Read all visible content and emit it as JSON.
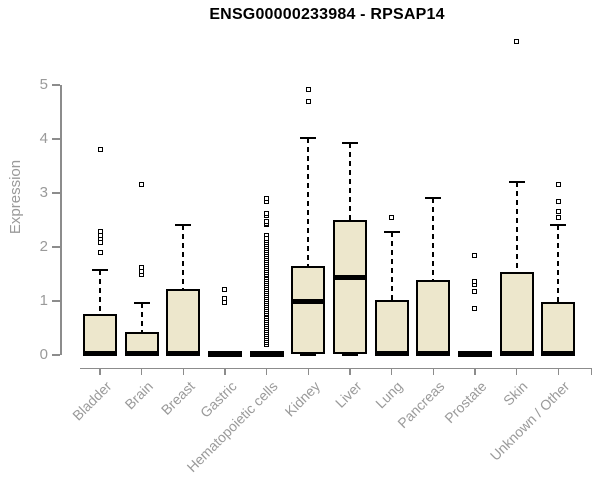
{
  "chart_data": {
    "type": "boxplot",
    "title": "ENSG00000233984 - RPSAP14",
    "ylabel": "Expression",
    "xlabel": "",
    "ylim": [
      0,
      5
    ],
    "yticks": [
      0,
      1,
      2,
      3,
      4,
      5
    ],
    "grid": false,
    "legend": "none",
    "colors": {
      "box_fill": "#EDE7CC",
      "box_border": "#000000",
      "median": "#000000",
      "axis": "#8c8c8c",
      "tick_label": "#9a9a9a",
      "title": "#000000",
      "outlier_fill": "#ffffff"
    },
    "categories": [
      "Bladder",
      "Brain",
      "Breast",
      "Gastric",
      "Hematopoietic cells",
      "Kidney",
      "Liver",
      "Lung",
      "Pancreas",
      "Prostate",
      "Skin",
      "Unknown / Other"
    ],
    "series": [
      {
        "name": "Bladder",
        "q1": 0,
        "median": 0.03,
        "q3": 0.76,
        "whisker_low": 0,
        "whisker_high": 1.57,
        "outliers": [
          1.9,
          2.08,
          2.15,
          2.22,
          2.28,
          3.8
        ],
        "outlier_band": null
      },
      {
        "name": "Brain",
        "q1": 0,
        "median": 0.03,
        "q3": 0.43,
        "whisker_low": 0,
        "whisker_high": 0.96,
        "outliers": [
          1.5,
          1.55,
          1.62,
          3.15
        ],
        "outlier_band": null
      },
      {
        "name": "Breast",
        "q1": 0,
        "median": 0.03,
        "q3": 1.23,
        "whisker_low": 0,
        "whisker_high": 2.41,
        "outliers": [],
        "outlier_band": null
      },
      {
        "name": "Gastric",
        "q1": 0,
        "median": 0.02,
        "q3": 0.04,
        "whisker_low": 0,
        "whisker_high": 0.04,
        "outliers": [
          0.97,
          1.05,
          1.22
        ],
        "outlier_band": null
      },
      {
        "name": "Hematopoietic cells",
        "q1": 0,
        "median": 0.02,
        "q3": 0.04,
        "whisker_low": 0,
        "whisker_high": 0.04,
        "outliers": [
          2.22,
          2.41,
          2.44,
          2.47,
          2.58,
          2.62,
          2.85,
          2.9
        ],
        "outlier_band": {
          "min": 0.2,
          "max": 2.15,
          "count": 55
        }
      },
      {
        "name": "Kidney",
        "q1": 0.02,
        "median": 1.0,
        "q3": 1.65,
        "whisker_low": 0,
        "whisker_high": 4.02,
        "outliers": [
          4.69,
          4.91
        ],
        "outlier_band": null
      },
      {
        "name": "Liver",
        "q1": 0.02,
        "median": 1.43,
        "q3": 2.5,
        "whisker_low": 0,
        "whisker_high": 3.93,
        "outliers": [],
        "outlier_band": null
      },
      {
        "name": "Lung",
        "q1": 0,
        "median": 0.03,
        "q3": 1.02,
        "whisker_low": 0,
        "whisker_high": 2.28,
        "outliers": [
          2.55
        ],
        "outlier_band": null
      },
      {
        "name": "Pancreas",
        "q1": 0,
        "median": 0.03,
        "q3": 1.39,
        "whisker_low": 0,
        "whisker_high": 2.9,
        "outliers": [],
        "outlier_band": null
      },
      {
        "name": "Prostate",
        "q1": 0,
        "median": 0.02,
        "q3": 0.04,
        "whisker_low": 0,
        "whisker_high": 0.04,
        "outliers": [
          0.86,
          1.17,
          1.3,
          1.36,
          1.85
        ],
        "outlier_band": null
      },
      {
        "name": "Skin",
        "q1": 0,
        "median": 0.03,
        "q3": 1.54,
        "whisker_low": 0,
        "whisker_high": 3.2,
        "outliers": [
          5.8
        ],
        "outlier_band": null
      },
      {
        "name": "Unknown / Other",
        "q1": 0,
        "median": 0.03,
        "q3": 0.98,
        "whisker_low": 0,
        "whisker_high": 2.41,
        "outliers": [
          2.54,
          2.65,
          2.84,
          3.15
        ],
        "outlier_band": null
      }
    ]
  }
}
